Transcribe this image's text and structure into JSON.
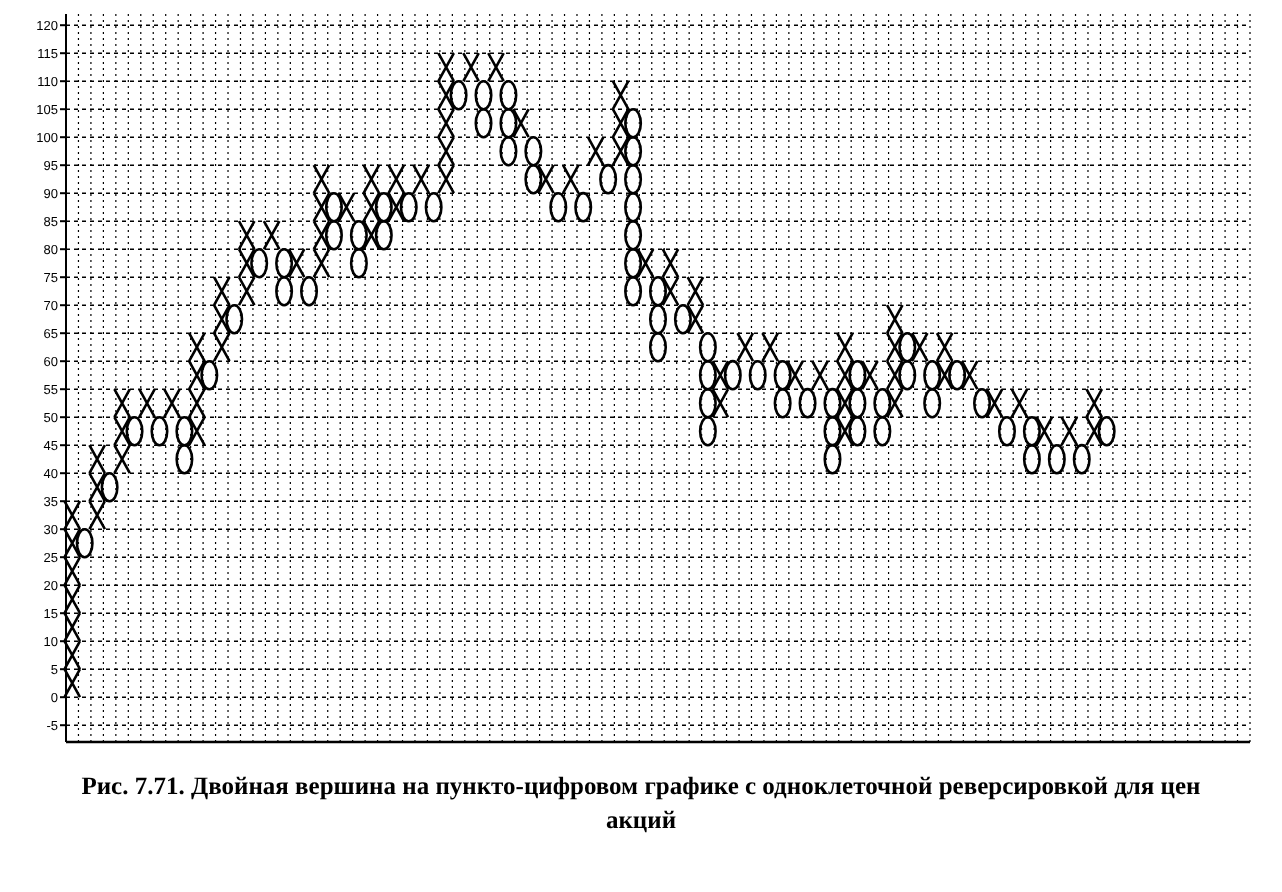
{
  "chart_data": {
    "type": "scatter",
    "title": "Рис. 7.71. Двойная вершина на пункто-цифровом графике с одноклеточной реверсировкой для цен акций",
    "categories": [
      null,
      null,
      null,
      null,
      null,
      null,
      null,
      null,
      null,
      null,
      null,
      null,
      null,
      null,
      null,
      null,
      null,
      null,
      null,
      null,
      null,
      null,
      null,
      null,
      null,
      null,
      null,
      null,
      null,
      null,
      null,
      null,
      null,
      null,
      null,
      null,
      null,
      null,
      null,
      null,
      null,
      null,
      null,
      null,
      null,
      null,
      null,
      null,
      null,
      null,
      null,
      null,
      null,
      null,
      null,
      null,
      null,
      null,
      null,
      null,
      null,
      null,
      null,
      null,
      null,
      null,
      null,
      null,
      null,
      null,
      null,
      null,
      null,
      null,
      null,
      null,
      null,
      null,
      null,
      null,
      null,
      null,
      null,
      null,
      null,
      null,
      null,
      null,
      null,
      null,
      null,
      null,
      null,
      null,
      null
    ],
    "series": [
      {
        "color": "#000000",
        "marker": "cross",
        "values": [
          2.5,
          null,
          32.5,
          null,
          42.5,
          null,
          52.5,
          null,
          52.5,
          null,
          47.5,
          null,
          62.5,
          null,
          72.5,
          null,
          82.5,
          null,
          77.5,
          null,
          77.5,
          null,
          87.5,
          null,
          82.5,
          null,
          87.5,
          null,
          92.5,
          null,
          92.5,
          null,
          112.5,
          null,
          112.5,
          null,
          102.5,
          null,
          92.5,
          null,
          92.5,
          null,
          97.5,
          null,
          97.5,
          null,
          77.5,
          null,
          72.5,
          null,
          67.5,
          null,
          52.5,
          null,
          62.5,
          null,
          62.5,
          null,
          57.5,
          null,
          57.5,
          null,
          47.5,
          null,
          57.5,
          null,
          52.5,
          null,
          62.5,
          null,
          57.5,
          null,
          57.5,
          null,
          52.5,
          null,
          52.5,
          null,
          47.5,
          null,
          47.5,
          null,
          47.5,
          null,
          null,
          null,
          null,
          null,
          null,
          null,
          null,
          null,
          null,
          null,
          null
        ]
      },
      {
        "color": "#000000",
        "marker": "cross",
        "values": [
          7.5,
          null,
          37.5,
          null,
          47.5,
          null,
          null,
          null,
          null,
          null,
          52.5,
          null,
          67.5,
          null,
          77.5,
          null,
          null,
          null,
          null,
          null,
          82.5,
          null,
          null,
          null,
          87.5,
          null,
          92.5,
          null,
          null,
          null,
          97.5,
          null,
          null,
          null,
          null,
          null,
          null,
          null,
          null,
          null,
          null,
          null,
          null,
          null,
          102.5,
          null,
          null,
          null,
          77.5,
          null,
          72.5,
          null,
          57.5,
          null,
          null,
          null,
          null,
          null,
          null,
          null,
          null,
          null,
          52.5,
          null,
          null,
          null,
          57.5,
          null,
          null,
          null,
          62.5,
          null,
          null,
          null,
          null,
          null,
          null,
          null,
          null,
          null,
          null,
          null,
          52.5,
          null,
          null,
          null,
          null,
          null,
          null,
          null,
          null,
          null,
          null,
          null,
          null
        ]
      },
      {
        "color": "#000000",
        "marker": "cross",
        "values": [
          12.5,
          null,
          42.5,
          null,
          52.5,
          null,
          null,
          null,
          null,
          null,
          57.5,
          null,
          72.5,
          null,
          82.5,
          null,
          null,
          null,
          null,
          null,
          87.5,
          null,
          null,
          null,
          92.5,
          null,
          null,
          null,
          null,
          null,
          102.5,
          null,
          null,
          null,
          null,
          null,
          null,
          null,
          null,
          null,
          null,
          null,
          null,
          null,
          107.5,
          null,
          null,
          null,
          null,
          null,
          null,
          null,
          null,
          null,
          null,
          null,
          null,
          null,
          null,
          null,
          null,
          null,
          57.5,
          null,
          null,
          null,
          62.5,
          null,
          null,
          null,
          null,
          null,
          null,
          null,
          null,
          null,
          null,
          null,
          null,
          null,
          null,
          null,
          null,
          null,
          null,
          null,
          null,
          null,
          null,
          null,
          null,
          null,
          null,
          null,
          null
        ]
      },
      {
        "color": "#000000",
        "marker": "cross",
        "values": [
          17.5,
          null,
          null,
          null,
          null,
          null,
          null,
          null,
          null,
          null,
          62.5,
          null,
          null,
          null,
          null,
          null,
          null,
          null,
          null,
          null,
          92.5,
          null,
          null,
          null,
          null,
          null,
          null,
          null,
          null,
          null,
          107.5,
          null,
          null,
          null,
          null,
          null,
          null,
          null,
          null,
          null,
          null,
          null,
          null,
          null,
          null,
          null,
          null,
          null,
          null,
          null,
          null,
          null,
          null,
          null,
          null,
          null,
          null,
          null,
          null,
          null,
          null,
          null,
          62.5,
          null,
          null,
          null,
          67.5,
          null,
          null,
          null,
          null,
          null,
          null,
          null,
          null,
          null,
          null,
          null,
          null,
          null,
          null,
          null,
          null,
          null,
          null,
          null,
          null,
          null,
          null,
          null,
          null,
          null,
          null,
          null,
          null
        ]
      },
      {
        "color": "#000000",
        "marker": "cross",
        "values": [
          22.5,
          null,
          null,
          null,
          null,
          null,
          null,
          null,
          null,
          null,
          null,
          null,
          null,
          null,
          null,
          null,
          null,
          null,
          null,
          null,
          null,
          null,
          null,
          null,
          null,
          null,
          null,
          null,
          null,
          null,
          112.5,
          null,
          null,
          null,
          null,
          null,
          null,
          null,
          null,
          null,
          null,
          null,
          null,
          null,
          null,
          null,
          null,
          null,
          null,
          null,
          null,
          null,
          null,
          null,
          null,
          null,
          null,
          null,
          null,
          null,
          null,
          null,
          null,
          null,
          null,
          null,
          null,
          null,
          null,
          null,
          null,
          null,
          null,
          null,
          null,
          null,
          null,
          null,
          null,
          null,
          null,
          null,
          null,
          null,
          null,
          null,
          null,
          null,
          null,
          null,
          null,
          null,
          null,
          null,
          null
        ]
      },
      {
        "color": "#000000",
        "marker": "cross",
        "values": [
          27.5,
          null,
          null,
          null,
          null,
          null,
          null,
          null,
          null,
          null,
          null,
          null,
          null,
          null,
          null,
          null,
          null,
          null,
          null,
          null,
          null,
          null,
          null,
          null,
          null,
          null,
          null,
          null,
          null,
          null,
          null,
          null,
          null,
          null,
          null,
          null,
          null,
          null,
          null,
          null,
          null,
          null,
          null,
          null,
          null,
          null,
          null,
          null,
          null,
          null,
          null,
          null,
          null,
          null,
          null,
          null,
          null,
          null,
          null,
          null,
          null,
          null,
          null,
          null,
          null,
          null,
          null,
          null,
          null,
          null,
          null,
          null,
          null,
          null,
          null,
          null,
          null,
          null,
          null,
          null,
          null,
          null,
          null,
          null,
          null,
          null,
          null,
          null,
          null,
          null,
          null,
          null,
          null,
          null,
          null
        ]
      },
      {
        "color": "#000000",
        "marker": "cross",
        "values": [
          32.5,
          null,
          null,
          null,
          null,
          null,
          null,
          null,
          null,
          null,
          null,
          null,
          null,
          null,
          null,
          null,
          null,
          null,
          null,
          null,
          null,
          null,
          null,
          null,
          null,
          null,
          null,
          null,
          null,
          null,
          null,
          null,
          null,
          null,
          null,
          null,
          null,
          null,
          null,
          null,
          null,
          null,
          null,
          null,
          null,
          null,
          null,
          null,
          null,
          null,
          null,
          null,
          null,
          null,
          null,
          null,
          null,
          null,
          null,
          null,
          null,
          null,
          null,
          null,
          null,
          null,
          null,
          null,
          null,
          null,
          null,
          null,
          null,
          null,
          null,
          null,
          null,
          null,
          null,
          null,
          null,
          null,
          null,
          null,
          null,
          null,
          null,
          null,
          null,
          null,
          null,
          null,
          null,
          null,
          null
        ]
      },
      {
        "color": "#000000",
        "marker": "circle",
        "values": [
          null,
          27.5,
          null,
          37.5,
          null,
          47.5,
          null,
          47.5,
          null,
          42.5,
          null,
          57.5,
          null,
          67.5,
          null,
          77.5,
          null,
          72.5,
          null,
          72.5,
          null,
          82.5,
          null,
          77.5,
          null,
          82.5,
          null,
          87.5,
          null,
          87.5,
          null,
          107.5,
          null,
          102.5,
          null,
          97.5,
          null,
          92.5,
          null,
          87.5,
          null,
          87.5,
          null,
          92.5,
          null,
          72.5,
          null,
          62.5,
          null,
          67.5,
          null,
          47.5,
          null,
          57.5,
          null,
          57.5,
          null,
          52.5,
          null,
          52.5,
          null,
          42.5,
          null,
          47.5,
          null,
          47.5,
          null,
          57.5,
          null,
          52.5,
          null,
          57.5,
          null,
          52.5,
          null,
          47.5,
          null,
          42.5,
          null,
          42.5,
          null,
          42.5,
          null,
          47.5,
          null,
          null,
          null,
          null,
          null,
          null,
          null,
          null,
          null,
          null,
          null
        ]
      },
      {
        "color": "#000000",
        "marker": "circle",
        "values": [
          null,
          null,
          null,
          null,
          null,
          null,
          null,
          null,
          null,
          47.5,
          null,
          null,
          null,
          null,
          null,
          null,
          null,
          77.5,
          null,
          null,
          null,
          87.5,
          null,
          82.5,
          null,
          87.5,
          null,
          null,
          null,
          null,
          null,
          null,
          null,
          107.5,
          null,
          102.5,
          null,
          97.5,
          null,
          null,
          null,
          null,
          null,
          null,
          null,
          77.5,
          null,
          67.5,
          null,
          null,
          null,
          52.5,
          null,
          null,
          null,
          null,
          null,
          57.5,
          null,
          null,
          null,
          47.5,
          null,
          52.5,
          null,
          52.5,
          null,
          62.5,
          null,
          57.5,
          null,
          null,
          null,
          null,
          null,
          null,
          null,
          47.5,
          null,
          null,
          null,
          null,
          null,
          null,
          null,
          null,
          null,
          null,
          null,
          null,
          null,
          null,
          null,
          null,
          null
        ]
      },
      {
        "color": "#000000",
        "marker": "circle",
        "values": [
          null,
          null,
          null,
          null,
          null,
          null,
          null,
          null,
          null,
          null,
          null,
          null,
          null,
          null,
          null,
          null,
          null,
          null,
          null,
          null,
          null,
          null,
          null,
          null,
          null,
          null,
          null,
          null,
          null,
          null,
          null,
          null,
          null,
          null,
          null,
          107.5,
          null,
          null,
          null,
          null,
          null,
          null,
          null,
          null,
          null,
          82.5,
          null,
          72.5,
          null,
          null,
          null,
          57.5,
          null,
          null,
          null,
          null,
          null,
          null,
          null,
          null,
          null,
          52.5,
          null,
          57.5,
          null,
          null,
          null,
          null,
          null,
          null,
          null,
          null,
          null,
          null,
          null,
          null,
          null,
          null,
          null,
          null,
          null,
          null,
          null,
          null,
          null,
          null,
          null,
          null,
          null,
          null,
          null,
          null,
          null,
          null,
          null
        ]
      },
      {
        "color": "#000000",
        "marker": "circle",
        "values": [
          null,
          null,
          null,
          null,
          null,
          null,
          null,
          null,
          null,
          null,
          null,
          null,
          null,
          null,
          null,
          null,
          null,
          null,
          null,
          null,
          null,
          null,
          null,
          null,
          null,
          null,
          null,
          null,
          null,
          null,
          null,
          null,
          null,
          null,
          null,
          null,
          null,
          null,
          null,
          null,
          null,
          null,
          null,
          null,
          null,
          87.5,
          null,
          null,
          null,
          null,
          null,
          62.5,
          null,
          null,
          null,
          null,
          null,
          null,
          null,
          null,
          null,
          null,
          null,
          null,
          null,
          null,
          null,
          null,
          null,
          null,
          null,
          null,
          null,
          null,
          null,
          null,
          null,
          null,
          null,
          null,
          null,
          null,
          null,
          null,
          null,
          null,
          null,
          null,
          null,
          null,
          null,
          null,
          null,
          null,
          null
        ]
      },
      {
        "color": "#000000",
        "marker": "circle",
        "values": [
          null,
          null,
          null,
          null,
          null,
          null,
          null,
          null,
          null,
          null,
          null,
          null,
          null,
          null,
          null,
          null,
          null,
          null,
          null,
          null,
          null,
          null,
          null,
          null,
          null,
          null,
          null,
          null,
          null,
          null,
          null,
          null,
          null,
          null,
          null,
          null,
          null,
          null,
          null,
          null,
          null,
          null,
          null,
          null,
          null,
          92.5,
          null,
          null,
          null,
          null,
          null,
          null,
          null,
          null,
          null,
          null,
          null,
          null,
          null,
          null,
          null,
          null,
          null,
          null,
          null,
          null,
          null,
          null,
          null,
          null,
          null,
          null,
          null,
          null,
          null,
          null,
          null,
          null,
          null,
          null,
          null,
          null,
          null,
          null,
          null,
          null,
          null,
          null,
          null,
          null,
          null,
          null,
          null,
          null,
          null
        ]
      },
      {
        "color": "#000000",
        "marker": "circle",
        "values": [
          null,
          null,
          null,
          null,
          null,
          null,
          null,
          null,
          null,
          null,
          null,
          null,
          null,
          null,
          null,
          null,
          null,
          null,
          null,
          null,
          null,
          null,
          null,
          null,
          null,
          null,
          null,
          null,
          null,
          null,
          null,
          null,
          null,
          null,
          null,
          null,
          null,
          null,
          null,
          null,
          null,
          null,
          null,
          null,
          null,
          97.5,
          null,
          null,
          null,
          null,
          null,
          null,
          null,
          null,
          null,
          null,
          null,
          null,
          null,
          null,
          null,
          null,
          null,
          null,
          null,
          null,
          null,
          null,
          null,
          null,
          null,
          null,
          null,
          null,
          null,
          null,
          null,
          null,
          null,
          null,
          null,
          null,
          null,
          null,
          null,
          null,
          null,
          null,
          null,
          null,
          null,
          null,
          null,
          null,
          null
        ]
      },
      {
        "color": "#000000",
        "marker": "circle",
        "values": [
          null,
          null,
          null,
          null,
          null,
          null,
          null,
          null,
          null,
          null,
          null,
          null,
          null,
          null,
          null,
          null,
          null,
          null,
          null,
          null,
          null,
          null,
          null,
          null,
          null,
          null,
          null,
          null,
          null,
          null,
          null,
          null,
          null,
          null,
          null,
          null,
          null,
          null,
          null,
          null,
          null,
          null,
          null,
          null,
          null,
          102.5,
          null,
          null,
          null,
          null,
          null,
          null,
          null,
          null,
          null,
          null,
          null,
          null,
          null,
          null,
          null,
          null,
          null,
          null,
          null,
          null,
          null,
          null,
          null,
          null,
          null,
          null,
          null,
          null,
          null,
          null,
          null,
          null,
          null,
          null,
          null,
          null,
          null,
          null,
          null,
          null,
          null,
          null,
          null,
          null,
          null,
          null,
          null,
          null,
          null
        ]
      }
    ],
    "ylim": [
      -8,
      122
    ],
    "yticks": [
      -5,
      0,
      5,
      10,
      15,
      20,
      25,
      30,
      35,
      40,
      45,
      50,
      55,
      60,
      65,
      70,
      75,
      80,
      85,
      90,
      95,
      100,
      105,
      110,
      115,
      120
    ],
    "grid": true
  }
}
